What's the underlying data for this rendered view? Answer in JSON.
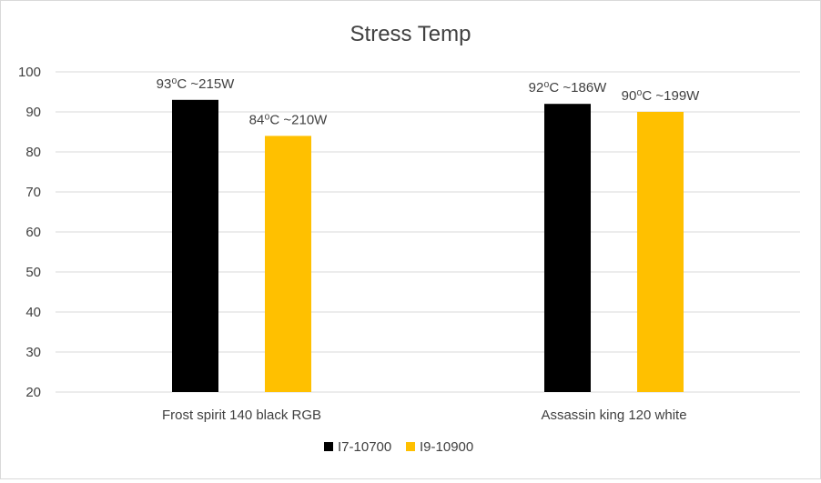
{
  "chart_data": {
    "type": "bar",
    "title": "Stress Temp",
    "xlabel": "",
    "ylabel": "",
    "ylim": [
      20,
      100
    ],
    "yticks": [
      20,
      30,
      40,
      50,
      60,
      70,
      80,
      90,
      100
    ],
    "grid": true,
    "legend_position": "bottom",
    "categories": [
      "Frost spirit 140 black RGB",
      "Assassin king 120 white"
    ],
    "series": [
      {
        "name": "I7-10700",
        "color": "#000000",
        "values": [
          93,
          92
        ],
        "data_labels": [
          "93⁰C ~215W",
          "92⁰C ~186W"
        ]
      },
      {
        "name": "I9-10900",
        "color": "#ffc000",
        "values": [
          84,
          90
        ],
        "data_labels": [
          "84⁰C ~210W",
          "90⁰C ~199W"
        ]
      }
    ]
  }
}
